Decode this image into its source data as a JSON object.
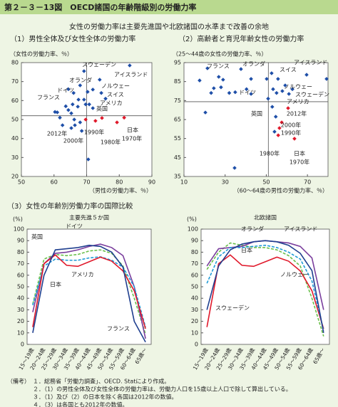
{
  "header": {
    "figure_title": "第２－３－13図　OECD諸国の年齢階級別の労働力率",
    "subtitle": "女性の労働力率は主要先進国や北欧諸国の水準まで改善の余地"
  },
  "chart_data": [
    {
      "type": "scatter",
      "title": "（1）男性全体及び女性全体の労働力率",
      "y_label": "（女性の労働力率、％）",
      "x_label": "（男性の労働力率、％）",
      "xlim": [
        50,
        90
      ],
      "xticks": [
        50,
        60,
        70,
        80,
        90
      ],
      "ylim": [
        20,
        80
      ],
      "yticks": [
        20,
        30,
        40,
        50,
        60,
        70,
        80
      ],
      "ref_x": 70,
      "ref_y": 52,
      "series": [
        {
          "color": "#1f4fa8",
          "x": [
            83.2,
            69.2,
            74,
            68,
            64.4,
            66,
            70.3,
            71.9,
            74.5,
            75.8,
            69.7,
            67.3,
            63.6,
            60.3,
            61,
            64.4,
            65.7,
            67.5,
            69.2,
            70.8,
            71.9,
            61.8,
            62.6,
            66.4,
            66.2,
            68,
            68.5,
            70.5,
            65.3,
            65.3
          ],
          "values": [
            78.5,
            75.5,
            71,
            68,
            66,
            64,
            64.6,
            65.8,
            64,
            61,
            58,
            56.8,
            57,
            54,
            53.8,
            55,
            58,
            60.5,
            60.5,
            58,
            56,
            51,
            47,
            47,
            50,
            48.5,
            44,
            29,
            45.5,
            53.3
          ]
        },
        {
          "name": "日本",
          "color": "#e0192b",
          "x": [
            69.7,
            72.7,
            74.7,
            79.3,
            81.5
          ],
          "values": [
            50,
            49.3,
            50.8,
            48.5,
            51
          ],
          "point_labels": [
            "2012年",
            "2000年",
            "1990年",
            "1980年",
            "1970年"
          ]
        }
      ],
      "annotations": [
        "スウェーデン",
        "アイスランド",
        "オランダ",
        "ノルウェー",
        "ドイツ",
        "スイス",
        "フランス",
        "アメリカ",
        "英国"
      ]
    },
    {
      "type": "scatter",
      "title": "（2）高齢者と育児年齢女性の労働力率",
      "y_label": "（25～44歳の女性の労働力率、％）",
      "x_label": "（60～64歳の男性の労働力率、％）",
      "xlim": [
        10,
        80
      ],
      "xticks": [
        10,
        30,
        50,
        70
      ],
      "ylim": [
        35,
        95
      ],
      "yticks": [
        35,
        45,
        55,
        65,
        75,
        85,
        95
      ],
      "ref_x": 51,
      "ref_y": 74.4,
      "series": [
        {
          "color": "#1f4fa8",
          "x": [
            21.4,
            17.6,
            26.9,
            29,
            28,
            23.2,
            32,
            34.9,
            37.7,
            42.6,
            50.2,
            52.6,
            55.7,
            59.2,
            69.6,
            79.3,
            53.3,
            55,
            57.8,
            61,
            62.7,
            50.9,
            24.5,
            20.4,
            34.6,
            54,
            52.9,
            54.6,
            40.4,
            42.6
          ],
          "values": [
            92,
            85.6,
            87.5,
            86,
            82,
            79,
            79,
            79.4,
            91.6,
            86.4,
            86.4,
            89.4,
            86.4,
            83,
            88.6,
            86.4,
            81,
            79,
            80,
            78.5,
            81,
            76,
            81.5,
            68.7,
            39.5,
            58.6,
            71.7,
            66.5,
            81,
            78.5
          ]
        },
        {
          "name": "日本",
          "color": "#e0192b",
          "x": [
            60.6,
            57.5,
            56.4,
            55.8,
            63.7
          ],
          "values": [
            71,
            63.5,
            60.5,
            56.7,
            54.9
          ],
          "point_labels": [
            "2012年",
            "2000年",
            "1990年",
            "1980年",
            "1970年"
          ]
        }
      ],
      "annotations": [
        "フランス",
        "オランダ",
        "アイスランド",
        "スイス",
        "ドイツ",
        "ノルウェー",
        "スウェーデン",
        "アメリカ",
        "英国"
      ]
    },
    {
      "type": "line",
      "title": "（3）女性の年齢別労働力率の国際比較",
      "subtitle": "主要先進５か国",
      "y_label": "(%)",
      "categories": [
        "15～19歳",
        "20～24歳",
        "25～29歳",
        "30～34歳",
        "35～39歳",
        "40～44歳",
        "45～49歳",
        "50～54歳",
        "55～59歳",
        "60～64歳",
        "65歳～"
      ],
      "ylim": [
        0,
        100
      ],
      "yticks": [
        0,
        10,
        20,
        30,
        40,
        50,
        60,
        70,
        80,
        90,
        100
      ],
      "series": [
        {
          "name": "英国",
          "color": "#6abf4b",
          "style": "dashed",
          "values": [
            35,
            74,
            78,
            77,
            78,
            81,
            82,
            79,
            68,
            40,
            9
          ]
        },
        {
          "name": "ドイツ",
          "color": "#7a3e9d",
          "style": "solid",
          "values": [
            28,
            70,
            79,
            80,
            82,
            85,
            87,
            84,
            77,
            50,
            5
          ]
        },
        {
          "name": "アメリカ",
          "color": "#1e9ad6",
          "style": "dashed",
          "values": [
            34,
            68,
            74,
            73,
            73,
            75,
            76,
            73,
            67,
            50,
            15
          ]
        },
        {
          "name": "日本",
          "color": "#e0192b",
          "style": "solid",
          "values": [
            15,
            70,
            77.6,
            68.6,
            67.7,
            71.7,
            75.7,
            72.2,
            63.7,
            46.5,
            13.6
          ]
        },
        {
          "name": "フランス",
          "color": "#1f3f8f",
          "style": "solid",
          "values": [
            10,
            60,
            82,
            83,
            84,
            86,
            85,
            80,
            67,
            20,
            2
          ]
        }
      ]
    },
    {
      "type": "line",
      "subtitle": "北欧諸国",
      "y_label": "(%)",
      "categories": [
        "15～19歳",
        "20～24歳",
        "25～29歳",
        "30～34歳",
        "35～39歳",
        "40～44歳",
        "45～49歳",
        "50～54歳",
        "55～59歳",
        "60～64歳",
        "65歳～"
      ],
      "ylim": [
        0,
        100
      ],
      "yticks": [
        0,
        10,
        20,
        30,
        40,
        50,
        60,
        70,
        80,
        90,
        100
      ],
      "series": [
        {
          "name": "オランダ",
          "color": "#6abf4b",
          "style": "dashed",
          "values": [
            65,
            80,
            88,
            86,
            84,
            84,
            82,
            77,
            68,
            40,
            7
          ]
        },
        {
          "name": "アイスランド",
          "color": "#7a3e9d",
          "style": "solid",
          "values": [
            68,
            83,
            84,
            85,
            89,
            90,
            89,
            88,
            85,
            75,
            30
          ]
        },
        {
          "name": "日本",
          "color": "#e0192b",
          "style": "solid",
          "values": [
            15,
            70,
            77.6,
            68.6,
            67.7,
            71.7,
            75.7,
            72.2,
            63.7,
            46.5,
            13.6
          ]
        },
        {
          "name": "ノルウェー",
          "color": "#1e9ad6",
          "style": "dashed",
          "values": [
            53,
            76,
            84,
            84,
            85,
            86,
            84,
            80,
            74,
            55,
            12
          ]
        },
        {
          "name": "スウェーデン",
          "color": "#1f3f8f",
          "style": "solid",
          "values": [
            30,
            68,
            82,
            87,
            89,
            90,
            89,
            86,
            79,
            64,
            10
          ]
        }
      ]
    }
  ],
  "notes": {
    "label": "（備考）",
    "items": [
      "１．総務省「労働力調査」、OECD. Statにより作成。",
      "２．（1）の男性全体及び女性全体の労働力率は、労働力人口を15歳以上人口で除して算出している。",
      "３．（1）及び（2）の日本を除く各国は2012年の数値。",
      "４．（3）は各国とも2012年の数値。"
    ]
  }
}
